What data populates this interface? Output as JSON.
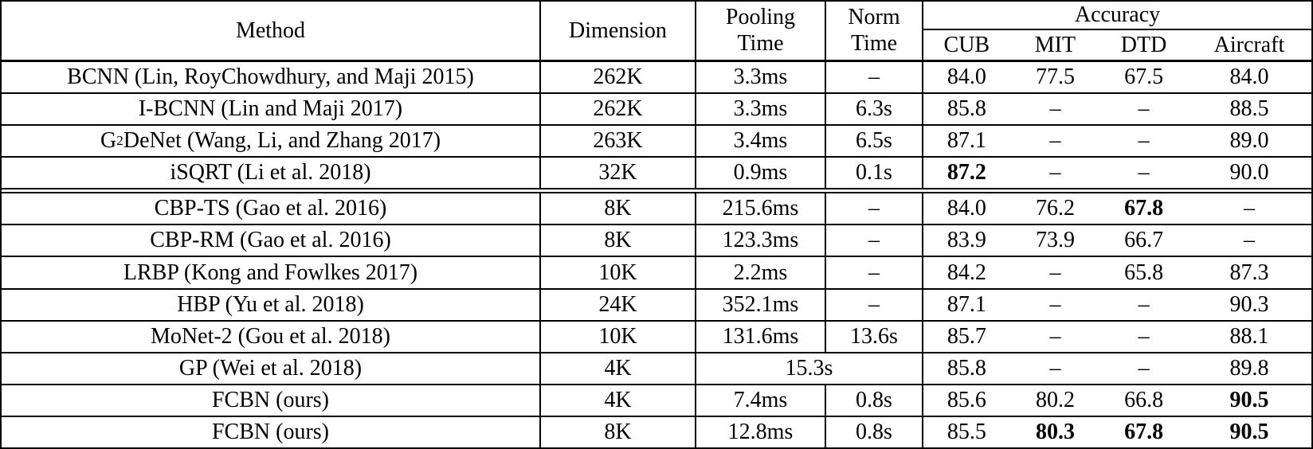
{
  "colors": {
    "background": "#ffffff",
    "text": "#000000",
    "border": "#000000"
  },
  "table": {
    "header": {
      "method": "Method",
      "dimension": "Dimension",
      "pooling_line1": "Pooling",
      "pooling_line2": "Time",
      "norm_line1": "Norm",
      "norm_line2": "Time",
      "accuracy": "Accuracy",
      "accuracy_subcols": [
        "CUB",
        "MIT",
        "DTD",
        "Aircraft"
      ]
    },
    "groups": [
      {
        "rows": [
          {
            "method": "BCNN (Lin, RoyChowdhury, and Maji 2015)",
            "dimension": "262K",
            "pooling": "3.3ms",
            "norm": "–",
            "pooling_norm_merged": false,
            "acc": [
              {
                "v": "84.0",
                "bold": false
              },
              {
                "v": "77.5",
                "bold": false
              },
              {
                "v": "67.5",
                "bold": false
              },
              {
                "v": "84.0",
                "bold": false
              }
            ]
          },
          {
            "method": "I-BCNN (Lin and Maji 2017)",
            "dimension": "262K",
            "pooling": "3.3ms",
            "norm": "6.3s",
            "pooling_norm_merged": false,
            "acc": [
              {
                "v": "85.8",
                "bold": false
              },
              {
                "v": "–",
                "bold": false
              },
              {
                "v": "–",
                "bold": false
              },
              {
                "v": "88.5",
                "bold": false
              }
            ]
          },
          {
            "method": "G²DeNet (Wang, Li, and Zhang 2017)",
            "dimension": "263K",
            "pooling": "3.4ms",
            "norm": "6.5s",
            "pooling_norm_merged": false,
            "acc": [
              {
                "v": "87.1",
                "bold": false
              },
              {
                "v": "–",
                "bold": false
              },
              {
                "v": "–",
                "bold": false
              },
              {
                "v": "89.0",
                "bold": false
              }
            ]
          },
          {
            "method": "iSQRT (Li et al. 2018)",
            "dimension": "32K",
            "pooling": "0.9ms",
            "norm": "0.1s",
            "pooling_norm_merged": false,
            "acc": [
              {
                "v": "87.2",
                "bold": true
              },
              {
                "v": "–",
                "bold": false
              },
              {
                "v": "–",
                "bold": false
              },
              {
                "v": "90.0",
                "bold": false
              }
            ]
          }
        ]
      },
      {
        "rows": [
          {
            "method": "CBP-TS (Gao et al. 2016)",
            "dimension": "8K",
            "pooling": "215.6ms",
            "norm": "–",
            "pooling_norm_merged": false,
            "acc": [
              {
                "v": "84.0",
                "bold": false
              },
              {
                "v": "76.2",
                "bold": false
              },
              {
                "v": "67.8",
                "bold": true
              },
              {
                "v": "–",
                "bold": false
              }
            ]
          },
          {
            "method": "CBP-RM (Gao et al. 2016)",
            "dimension": "8K",
            "pooling": "123.3ms",
            "norm": "–",
            "pooling_norm_merged": false,
            "acc": [
              {
                "v": "83.9",
                "bold": false
              },
              {
                "v": "73.9",
                "bold": false
              },
              {
                "v": "66.7",
                "bold": false
              },
              {
                "v": "–",
                "bold": false
              }
            ]
          },
          {
            "method": "LRBP (Kong and Fowlkes 2017)",
            "dimension": "10K",
            "pooling": "2.2ms",
            "norm": "–",
            "pooling_norm_merged": false,
            "acc": [
              {
                "v": "84.2",
                "bold": false
              },
              {
                "v": "–",
                "bold": false
              },
              {
                "v": "65.8",
                "bold": false
              },
              {
                "v": "87.3",
                "bold": false
              }
            ]
          },
          {
            "method": "HBP (Yu et al. 2018)",
            "dimension": "24K",
            "pooling": "352.1ms",
            "norm": "–",
            "pooling_norm_merged": false,
            "acc": [
              {
                "v": "87.1",
                "bold": false
              },
              {
                "v": "–",
                "bold": false
              },
              {
                "v": "–",
                "bold": false
              },
              {
                "v": "90.3",
                "bold": false
              }
            ]
          },
          {
            "method": "MoNet-2 (Gou et al. 2018)",
            "dimension": "10K",
            "pooling": "131.6ms",
            "norm": "13.6s",
            "pooling_norm_merged": false,
            "acc": [
              {
                "v": "85.7",
                "bold": false
              },
              {
                "v": "–",
                "bold": false
              },
              {
                "v": "–",
                "bold": false
              },
              {
                "v": "88.1",
                "bold": false
              }
            ]
          },
          {
            "method": "GP (Wei et al. 2018)",
            "dimension": "4K",
            "pooling": "15.3s",
            "norm": "",
            "pooling_norm_merged": true,
            "acc": [
              {
                "v": "85.8",
                "bold": false
              },
              {
                "v": "–",
                "bold": false
              },
              {
                "v": "–",
                "bold": false
              },
              {
                "v": "89.8",
                "bold": false
              }
            ]
          },
          {
            "method": "FCBN (ours)",
            "dimension": "4K",
            "pooling": "7.4ms",
            "norm": "0.8s",
            "pooling_norm_merged": false,
            "acc": [
              {
                "v": "85.6",
                "bold": false
              },
              {
                "v": "80.2",
                "bold": false
              },
              {
                "v": "66.8",
                "bold": false
              },
              {
                "v": "90.5",
                "bold": true
              }
            ]
          },
          {
            "method": "FCBN (ours)",
            "dimension": "8K",
            "pooling": "12.8ms",
            "norm": "0.8s",
            "pooling_norm_merged": false,
            "acc": [
              {
                "v": "85.5",
                "bold": false
              },
              {
                "v": "80.3",
                "bold": true
              },
              {
                "v": "67.8",
                "bold": true
              },
              {
                "v": "90.5",
                "bold": true
              }
            ]
          }
        ]
      }
    ]
  }
}
